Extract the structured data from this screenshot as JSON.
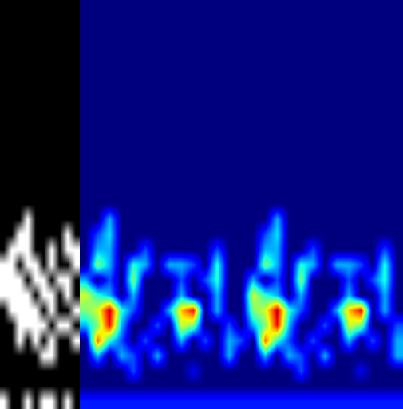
{
  "chart_data": [
    {
      "type": "heatmap",
      "color": "gray",
      "value_range": [
        0,
        1
      ],
      "tick_labels": false,
      "cells": [
        [
          0,
          0,
          0,
          0,
          0,
          0,
          0,
          0,
          0,
          0
        ],
        [
          0,
          0,
          0,
          0,
          0,
          0,
          0,
          0,
          0,
          0
        ],
        [
          0,
          0,
          0,
          0,
          0,
          0,
          0,
          0,
          0,
          0
        ],
        [
          0,
          0,
          0,
          0,
          0,
          0,
          0,
          0,
          0,
          0
        ],
        [
          0,
          0,
          0,
          0,
          0,
          0,
          0,
          0,
          0,
          0
        ],
        [
          0,
          0,
          0,
          0,
          0,
          0,
          0,
          0,
          0,
          0
        ],
        [
          0,
          0,
          0,
          0,
          0,
          0,
          0,
          0,
          0,
          0
        ],
        [
          0,
          0,
          0,
          0,
          0,
          0,
          0,
          0,
          0,
          0
        ],
        [
          0,
          0,
          0,
          0,
          0,
          0,
          0,
          0,
          0,
          0
        ],
        [
          0,
          0,
          0,
          0,
          0,
          0,
          0,
          0,
          0,
          0
        ],
        [
          0,
          0,
          0,
          0,
          0,
          0,
          0,
          0,
          0,
          0
        ],
        [
          0,
          0,
          0,
          0,
          0,
          0,
          0,
          0,
          0,
          0
        ],
        [
          0,
          0,
          0,
          0,
          0,
          0,
          0,
          0,
          0,
          0
        ],
        [
          0,
          0,
          0,
          0,
          0,
          0,
          0,
          0,
          0,
          0
        ],
        [
          0,
          0,
          0,
          1,
          0,
          0,
          0,
          0,
          0,
          0
        ],
        [
          0,
          0,
          1,
          1,
          0,
          0,
          0,
          0,
          1,
          0
        ],
        [
          0,
          1,
          1,
          1,
          0,
          0,
          1,
          0,
          1,
          1
        ],
        [
          1,
          1,
          0,
          1,
          1,
          0,
          1,
          0,
          0,
          1
        ],
        [
          1,
          1,
          1,
          0,
          1,
          1,
          0,
          1,
          1,
          0
        ],
        [
          1,
          1,
          1,
          1,
          0,
          1,
          1,
          0,
          1,
          0
        ],
        [
          0,
          1,
          1,
          1,
          1,
          0,
          1,
          0,
          0,
          1
        ],
        [
          0,
          0,
          1,
          1,
          1,
          1,
          0,
          1,
          1,
          0
        ],
        [
          0,
          0,
          1,
          0,
          1,
          0,
          1,
          0,
          0,
          1
        ],
        [
          0,
          0,
          0,
          0,
          0,
          1,
          1,
          0,
          0,
          0
        ],
        [
          0,
          0,
          0,
          0,
          0,
          0,
          0,
          0,
          0,
          0
        ],
        [
          0,
          0,
          0,
          0,
          0,
          0,
          0,
          0,
          0,
          0
        ],
        [
          1,
          0,
          0,
          1,
          0,
          1,
          1,
          0,
          1,
          0
        ]
      ]
    },
    {
      "type": "heatmap",
      "color": "jet",
      "value_range": [
        0,
        1
      ],
      "tick_labels": false,
      "cells": [
        [
          0,
          0,
          0,
          0,
          0,
          0,
          0,
          0,
          0,
          0,
          0,
          0,
          0,
          0,
          0,
          0,
          0,
          0,
          0,
          0,
          0,
          0,
          0,
          0,
          0,
          0,
          0
        ],
        [
          0,
          0,
          0,
          0,
          0,
          0,
          0,
          0,
          0,
          0,
          0,
          0,
          0,
          0,
          0,
          0,
          0,
          0,
          0,
          0,
          0,
          0,
          0,
          0,
          0,
          0,
          0
        ],
        [
          0,
          0,
          0,
          0,
          0,
          0,
          0,
          0,
          0,
          0,
          0,
          0,
          0,
          0,
          0,
          0,
          0,
          0,
          0,
          0,
          0,
          0,
          0,
          0,
          0,
          0,
          0
        ],
        [
          0,
          0,
          0,
          0,
          0,
          0,
          0,
          0,
          0,
          0,
          0,
          0,
          0,
          0,
          0,
          0,
          0,
          0,
          0,
          0,
          0,
          0,
          0,
          0,
          0,
          0,
          0
        ],
        [
          0,
          0,
          0,
          0,
          0,
          0,
          0,
          0,
          0,
          0,
          0,
          0,
          0,
          0,
          0,
          0,
          0,
          0,
          0,
          0,
          0,
          0,
          0,
          0,
          0,
          0,
          0
        ],
        [
          0,
          0,
          0,
          0,
          0,
          0,
          0,
          0,
          0,
          0,
          0,
          0,
          0,
          0,
          0,
          0,
          0,
          0,
          0,
          0,
          0,
          0,
          0,
          0,
          0,
          0,
          0
        ],
        [
          0,
          0,
          0,
          0,
          0,
          0,
          0,
          0,
          0,
          0,
          0,
          0,
          0,
          0,
          0,
          0,
          0,
          0,
          0,
          0,
          0,
          0,
          0,
          0,
          0,
          0,
          0
        ],
        [
          0,
          0,
          0,
          0,
          0,
          0,
          0,
          0,
          0,
          0,
          0,
          0,
          0,
          0,
          0,
          0,
          0,
          0,
          0,
          0,
          0,
          0,
          0,
          0,
          0,
          0,
          0
        ],
        [
          0,
          0,
          0,
          0,
          0,
          0,
          0,
          0,
          0,
          0,
          0,
          0,
          0,
          0,
          0,
          0,
          0,
          0,
          0,
          0,
          0,
          0,
          0,
          0,
          0,
          0,
          0
        ],
        [
          0,
          0,
          0,
          0,
          0,
          0,
          0,
          0,
          0,
          0,
          0,
          0,
          0,
          0,
          0,
          0,
          0,
          0,
          0,
          0,
          0,
          0,
          0,
          0,
          0,
          0,
          0
        ],
        [
          0,
          0,
          0,
          0,
          0,
          0,
          0,
          0,
          0,
          0,
          0,
          0,
          0,
          0,
          0,
          0,
          0,
          0,
          0,
          0,
          0,
          0,
          0,
          0,
          0,
          0,
          0
        ],
        [
          0,
          0,
          0,
          0,
          0,
          0,
          0,
          0,
          0,
          0,
          0,
          0,
          0,
          0,
          0,
          0,
          0,
          0,
          0,
          0,
          0,
          0,
          0,
          0,
          0,
          0,
          0
        ],
        [
          0,
          0,
          0,
          0,
          0,
          0,
          0,
          0,
          0,
          0,
          0,
          0,
          0,
          0,
          0,
          0,
          0,
          0,
          0,
          0,
          0,
          0,
          0,
          0,
          0,
          0,
          0
        ],
        [
          0,
          0,
          0,
          0,
          0,
          0,
          0,
          0,
          0,
          0,
          0,
          0,
          0,
          0,
          0,
          0,
          0,
          0,
          0,
          0,
          0,
          0,
          0,
          0,
          0,
          0,
          0
        ],
        [
          0,
          0,
          0.3,
          0,
          0,
          0,
          0,
          0,
          0,
          0,
          0,
          0,
          0,
          0,
          0,
          0,
          0.3,
          0,
          0,
          0,
          0,
          0,
          0,
          0,
          0,
          0,
          0
        ],
        [
          0,
          0.2,
          0.35,
          0,
          0,
          0,
          0,
          0,
          0,
          0,
          0,
          0,
          0,
          0,
          0,
          0.2,
          0.35,
          0,
          0,
          0,
          0,
          0,
          0,
          0,
          0,
          0,
          0
        ],
        [
          0,
          0.3,
          0.3,
          0,
          0,
          0.2,
          0,
          0,
          0,
          0,
          0,
          0.2,
          0,
          0,
          0,
          0.3,
          0.3,
          0,
          0,
          0.2,
          0,
          0,
          0,
          0,
          0,
          0.2,
          0
        ],
        [
          0,
          0.5,
          0.3,
          0,
          0.4,
          0.3,
          0,
          0.3,
          0.3,
          0.2,
          0,
          0.4,
          0,
          0,
          0,
          0.5,
          0.3,
          0,
          0.4,
          0.3,
          0,
          0.3,
          0.3,
          0.2,
          0,
          0.4,
          0
        ],
        [
          0.3,
          0,
          0.2,
          0,
          0.5,
          0,
          0,
          0,
          0.2,
          0,
          0.2,
          0.4,
          0,
          0,
          0.3,
          0,
          0.2,
          0,
          0.5,
          0,
          0,
          0,
          0.2,
          0,
          0.2,
          0.4,
          0
        ],
        [
          0.6,
          0.4,
          0.3,
          0,
          0.3,
          0,
          0,
          0,
          0.3,
          0,
          0,
          0.3,
          0,
          0,
          0.6,
          0.4,
          0.3,
          0,
          0.3,
          0,
          0,
          0,
          0.3,
          0,
          0,
          0.3,
          0
        ],
        [
          0.5,
          0.6,
          0.95,
          0.4,
          0.2,
          0,
          0,
          0.3,
          0.7,
          0.9,
          0,
          0.3,
          0,
          0,
          0.5,
          0.6,
          0.95,
          0.4,
          0.2,
          0,
          0,
          0.3,
          0.7,
          0.9,
          0,
          0.3,
          0
        ],
        [
          0.3,
          0.5,
          0.9,
          0.3,
          0,
          0,
          0.2,
          0,
          0.6,
          0.5,
          0,
          0,
          0.2,
          0,
          0.3,
          0.5,
          0.9,
          0.3,
          0,
          0,
          0.2,
          0,
          0.6,
          0.5,
          0,
          0,
          0.2
        ],
        [
          0,
          0.8,
          0.4,
          0.2,
          0,
          0.2,
          0,
          0,
          0.3,
          0,
          0.2,
          0,
          0.3,
          0.2,
          0,
          0.8,
          0.4,
          0.2,
          0,
          0.2,
          0,
          0,
          0.3,
          0,
          0.2,
          0,
          0.3
        ],
        [
          0,
          0.3,
          0,
          0.3,
          0.2,
          0,
          0.3,
          0,
          0,
          0,
          0,
          0,
          0.3,
          0,
          0,
          0.3,
          0,
          0.3,
          0.2,
          0,
          0.3,
          0,
          0,
          0,
          0,
          0,
          0.3
        ],
        [
          0,
          0,
          0,
          0,
          0.2,
          0,
          0,
          0,
          0,
          0.1,
          0,
          0,
          0,
          0,
          0,
          0,
          0,
          0,
          0.2,
          0,
          0,
          0,
          0,
          0.1,
          0,
          0,
          0
        ],
        [
          0,
          0,
          0,
          0,
          0,
          0,
          0,
          0,
          0,
          0,
          0,
          0,
          0,
          0,
          0,
          0,
          0,
          0,
          0,
          0,
          0,
          0,
          0,
          0,
          0,
          0,
          0
        ],
        [
          0.15,
          0.15,
          0.15,
          0.15,
          0.15,
          0.15,
          0.15,
          0.15,
          0.15,
          0.15,
          0.15,
          0.15,
          0.15,
          0.15,
          0.15,
          0.15,
          0.15,
          0.15,
          0.15,
          0.15,
          0.15,
          0.15,
          0.15,
          0.15,
          0.15,
          0.15,
          0.15
        ]
      ]
    }
  ]
}
